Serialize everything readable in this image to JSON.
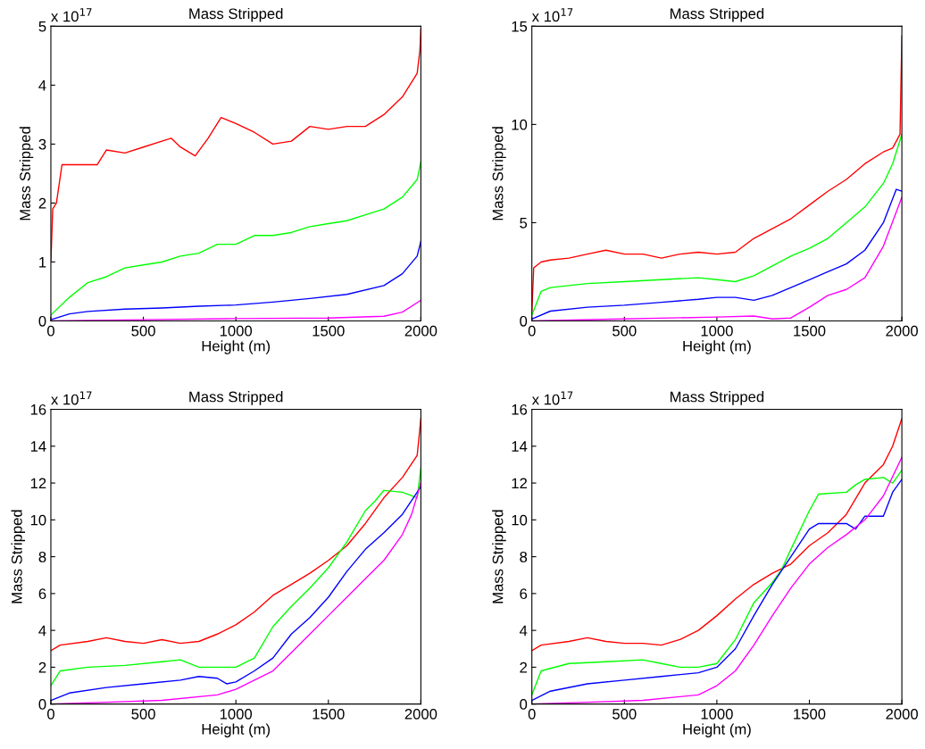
{
  "chart_data": [
    {
      "type": "line",
      "title": "Mass Stripped",
      "xlabel": "Height (m)",
      "ylabel": "Mass Stripped",
      "annotations": [
        "x 10$^{17}$"
      ],
      "xlim": [
        0,
        2000
      ],
      "ylim": [
        0,
        5
      ],
      "xticks": [
        0,
        500,
        1000,
        1500,
        2000
      ],
      "yticks": [
        0,
        1,
        2,
        3,
        4,
        5
      ],
      "grid": false,
      "marker": "none",
      "line_style": "solid",
      "series": [
        {
          "color": "#ff0000",
          "x": [
            0,
            10,
            30,
            60,
            150,
            250,
            300,
            400,
            500,
            600,
            650,
            700,
            780,
            850,
            920,
            1000,
            1100,
            1200,
            1300,
            1400,
            1500,
            1600,
            1700,
            1800,
            1900,
            1980,
            1995,
            2000
          ],
          "values": [
            1.0,
            1.9,
            2.0,
            2.65,
            2.65,
            2.65,
            2.9,
            2.85,
            2.95,
            3.05,
            3.1,
            2.95,
            2.8,
            3.1,
            3.45,
            3.35,
            3.2,
            3.0,
            3.05,
            3.3,
            3.25,
            3.3,
            3.3,
            3.5,
            3.8,
            4.2,
            4.6,
            4.95
          ]
        },
        {
          "color": "#00ff00",
          "x": [
            0,
            100,
            200,
            300,
            400,
            500,
            600,
            700,
            800,
            900,
            1000,
            1100,
            1200,
            1300,
            1400,
            1500,
            1600,
            1700,
            1800,
            1900,
            1980,
            2000
          ],
          "values": [
            0.1,
            0.4,
            0.65,
            0.75,
            0.9,
            0.95,
            1.0,
            1.1,
            1.15,
            1.3,
            1.3,
            1.45,
            1.45,
            1.5,
            1.6,
            1.65,
            1.7,
            1.8,
            1.9,
            2.1,
            2.4,
            2.7
          ]
        },
        {
          "color": "#0000ff",
          "x": [
            0,
            100,
            200,
            400,
            600,
            800,
            1000,
            1200,
            1400,
            1600,
            1800,
            1900,
            1980,
            2000
          ],
          "values": [
            0.02,
            0.12,
            0.16,
            0.2,
            0.22,
            0.25,
            0.27,
            0.32,
            0.38,
            0.45,
            0.6,
            0.8,
            1.1,
            1.35
          ]
        },
        {
          "color": "#ff00ff",
          "x": [
            0,
            500,
            1000,
            1500,
            1800,
            1900,
            2000
          ],
          "values": [
            0,
            0.02,
            0.04,
            0.05,
            0.08,
            0.15,
            0.35
          ]
        }
      ]
    },
    {
      "type": "line",
      "title": "Mass Stripped",
      "xlabel": "Height (m)",
      "ylabel": "Mass Stripped",
      "annotations": [
        "x 10$^{17}$"
      ],
      "xlim": [
        0,
        2000
      ],
      "ylim": [
        0,
        15
      ],
      "xticks": [
        0,
        500,
        1000,
        1500,
        2000
      ],
      "yticks": [
        0,
        5,
        10,
        15
      ],
      "grid": false,
      "marker": "none",
      "line_style": "solid",
      "series": [
        {
          "color": "#ff0000",
          "x": [
            0,
            10,
            50,
            100,
            200,
            300,
            400,
            500,
            600,
            700,
            800,
            900,
            1000,
            1100,
            1200,
            1300,
            1400,
            1500,
            1600,
            1700,
            1800,
            1900,
            1950,
            1990,
            2000
          ],
          "values": [
            0.5,
            2.7,
            3.0,
            3.1,
            3.2,
            3.4,
            3.6,
            3.4,
            3.4,
            3.2,
            3.4,
            3.5,
            3.4,
            3.5,
            4.2,
            4.7,
            5.2,
            5.9,
            6.6,
            7.2,
            8.0,
            8.6,
            8.8,
            9.5,
            14.5
          ]
        },
        {
          "color": "#00ff00",
          "x": [
            0,
            50,
            100,
            300,
            500,
            700,
            900,
            1000,
            1100,
            1200,
            1300,
            1400,
            1500,
            1600,
            1700,
            1800,
            1900,
            1950,
            2000
          ],
          "values": [
            0.3,
            1.5,
            1.7,
            1.9,
            2.0,
            2.1,
            2.2,
            2.1,
            2.0,
            2.3,
            2.8,
            3.3,
            3.7,
            4.2,
            5.0,
            5.8,
            7.0,
            8.0,
            9.5
          ]
        },
        {
          "color": "#0000ff",
          "x": [
            0,
            100,
            300,
            500,
            700,
            900,
            1000,
            1100,
            1200,
            1300,
            1400,
            1500,
            1600,
            1700,
            1800,
            1900,
            1970,
            2000
          ],
          "values": [
            0.1,
            0.5,
            0.7,
            0.8,
            0.95,
            1.1,
            1.2,
            1.2,
            1.05,
            1.3,
            1.7,
            2.1,
            2.5,
            2.9,
            3.6,
            5.0,
            6.7,
            6.6
          ]
        },
        {
          "color": "#ff00ff",
          "x": [
            0,
            500,
            1000,
            1200,
            1300,
            1400,
            1500,
            1600,
            1700,
            1800,
            1900,
            2000
          ],
          "values": [
            0,
            0.1,
            0.2,
            0.25,
            0.1,
            0.15,
            0.7,
            1.3,
            1.6,
            2.2,
            3.8,
            6.3
          ]
        }
      ]
    },
    {
      "type": "line",
      "title": "Mass Stripped",
      "xlabel": "Height (m)",
      "ylabel": "Mass Stripped",
      "annotations": [
        "x 10$^{17}$"
      ],
      "xlim": [
        0,
        2000
      ],
      "ylim": [
        0,
        16
      ],
      "xticks": [
        0,
        500,
        1000,
        1500,
        2000
      ],
      "yticks": [
        0,
        2,
        4,
        6,
        8,
        10,
        12,
        14,
        16
      ],
      "grid": false,
      "marker": "none",
      "line_style": "solid",
      "series": [
        {
          "color": "#ff0000",
          "x": [
            0,
            50,
            200,
            300,
            400,
            500,
            600,
            700,
            800,
            900,
            1000,
            1100,
            1200,
            1300,
            1400,
            1500,
            1600,
            1700,
            1800,
            1900,
            1980,
            2000
          ],
          "values": [
            2.9,
            3.2,
            3.4,
            3.6,
            3.4,
            3.3,
            3.5,
            3.3,
            3.4,
            3.8,
            4.3,
            5.0,
            5.9,
            6.5,
            7.1,
            7.8,
            8.6,
            9.8,
            11.2,
            12.3,
            13.5,
            15.5
          ]
        },
        {
          "color": "#00ff00",
          "x": [
            0,
            50,
            200,
            400,
            600,
            700,
            800,
            1000,
            1100,
            1200,
            1300,
            1400,
            1500,
            1600,
            1700,
            1750,
            1800,
            1900,
            1980,
            2000
          ],
          "values": [
            1.0,
            1.8,
            2.0,
            2.1,
            2.3,
            2.4,
            2.0,
            2.0,
            2.5,
            4.2,
            5.3,
            6.3,
            7.4,
            8.8,
            10.5,
            11.0,
            11.6,
            11.5,
            11.2,
            12.8
          ]
        },
        {
          "color": "#0000ff",
          "x": [
            0,
            100,
            300,
            500,
            700,
            800,
            900,
            950,
            1000,
            1100,
            1200,
            1300,
            1400,
            1500,
            1600,
            1700,
            1800,
            1900,
            2000
          ],
          "values": [
            0.2,
            0.6,
            0.9,
            1.1,
            1.3,
            1.5,
            1.4,
            1.1,
            1.2,
            1.8,
            2.5,
            3.8,
            4.7,
            5.8,
            7.2,
            8.4,
            9.3,
            10.3,
            11.8
          ]
        },
        {
          "color": "#ff00ff",
          "x": [
            0,
            300,
            600,
            900,
            1000,
            1100,
            1200,
            1300,
            1400,
            1500,
            1600,
            1700,
            1800,
            1900,
            1950,
            2000
          ],
          "values": [
            0,
            0.1,
            0.2,
            0.5,
            0.8,
            1.3,
            1.8,
            2.8,
            3.8,
            4.8,
            5.8,
            6.8,
            7.8,
            9.2,
            10.3,
            12.0
          ]
        }
      ]
    },
    {
      "type": "line",
      "title": "Mass Stripped",
      "xlabel": "Height (m)",
      "ylabel": "Mass Stripped",
      "annotations": [
        "x 10$^{17}$"
      ],
      "xlim": [
        0,
        2000
      ],
      "ylim": [
        0,
        16
      ],
      "xticks": [
        0,
        500,
        1000,
        1500,
        2000
      ],
      "yticks": [
        0,
        2,
        4,
        6,
        8,
        10,
        12,
        14,
        16
      ],
      "grid": false,
      "marker": "none",
      "line_style": "solid",
      "series": [
        {
          "color": "#ff0000",
          "x": [
            0,
            50,
            200,
            300,
            400,
            500,
            600,
            700,
            800,
            900,
            1000,
            1100,
            1200,
            1300,
            1400,
            1500,
            1600,
            1700,
            1800,
            1900,
            1950,
            2000
          ],
          "values": [
            2.9,
            3.2,
            3.4,
            3.6,
            3.4,
            3.3,
            3.3,
            3.2,
            3.5,
            4.0,
            4.8,
            5.7,
            6.5,
            7.1,
            7.6,
            8.6,
            9.3,
            10.3,
            12.0,
            13.0,
            14.0,
            15.5
          ]
        },
        {
          "color": "#00ff00",
          "x": [
            0,
            50,
            200,
            400,
            600,
            700,
            800,
            900,
            1000,
            1100,
            1200,
            1300,
            1350,
            1400,
            1500,
            1550,
            1700,
            1750,
            1800,
            1900,
            1950,
            2000
          ],
          "values": [
            0.5,
            1.8,
            2.2,
            2.3,
            2.4,
            2.2,
            2.0,
            2.0,
            2.2,
            3.5,
            5.5,
            6.6,
            7.3,
            8.4,
            10.5,
            11.4,
            11.5,
            11.9,
            12.2,
            12.3,
            12.0,
            12.7
          ]
        },
        {
          "color": "#0000ff",
          "x": [
            0,
            100,
            300,
            500,
            700,
            900,
            1000,
            1100,
            1200,
            1300,
            1400,
            1500,
            1550,
            1700,
            1750,
            1800,
            1900,
            1950,
            2000
          ],
          "values": [
            0.2,
            0.7,
            1.1,
            1.3,
            1.5,
            1.7,
            2.0,
            3.0,
            4.8,
            6.5,
            8.0,
            9.5,
            9.8,
            9.8,
            9.5,
            10.2,
            10.2,
            11.5,
            12.2
          ]
        },
        {
          "color": "#ff00ff",
          "x": [
            0,
            300,
            600,
            800,
            900,
            1000,
            1100,
            1200,
            1300,
            1400,
            1500,
            1600,
            1700,
            1800,
            1900,
            2000
          ],
          "values": [
            0,
            0.1,
            0.2,
            0.4,
            0.5,
            1.0,
            1.8,
            3.2,
            4.8,
            6.3,
            7.6,
            8.5,
            9.2,
            10.0,
            11.3,
            13.4
          ]
        }
      ]
    }
  ]
}
